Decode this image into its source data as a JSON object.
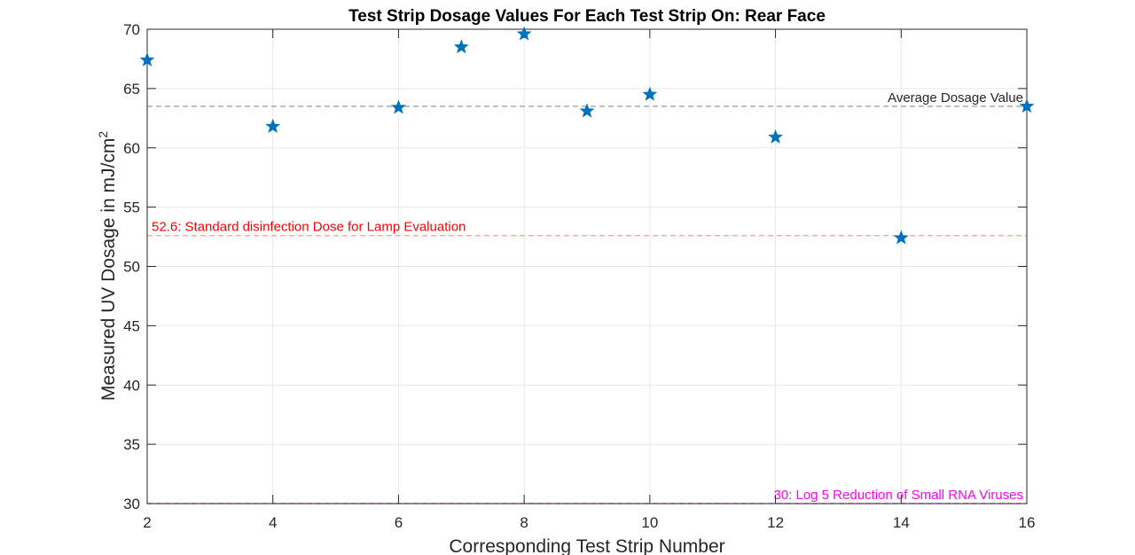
{
  "chart_data": {
    "type": "scatter",
    "title": "Test Strip Dosage Values For Each Test Strip On: Rear Face",
    "xlabel": "Corresponding Test Strip Number",
    "ylabel_main": "Measured UV Dosage in mJ/cm",
    "ylabel_sup": "2",
    "xlim": [
      2,
      16
    ],
    "ylim": [
      30,
      70
    ],
    "xticks": [
      2,
      4,
      6,
      8,
      10,
      12,
      14,
      16
    ],
    "yticks": [
      30,
      35,
      40,
      45,
      50,
      55,
      60,
      65,
      70
    ],
    "grid": true,
    "marker": "star",
    "marker_color": "#0072BD",
    "x": [
      2,
      4,
      6,
      7,
      8,
      9,
      10,
      12,
      14,
      16
    ],
    "y": [
      67.4,
      61.8,
      63.4,
      68.5,
      69.6,
      63.1,
      64.5,
      60.9,
      52.4,
      63.5
    ],
    "reference_lines": [
      {
        "y": 63.5,
        "label": "Average Dosage Value",
        "color": "#8c8c8c",
        "text_color": "#262626",
        "label_anchor": "right"
      },
      {
        "y": 52.6,
        "label": "52.6: Standard disinfection Dose for Lamp Evaluation",
        "color": "#ff9999",
        "text_color": "#ff0000",
        "label_anchor": "left"
      },
      {
        "y": 30,
        "label": "30: Log 5 Reduction of Small RNA Viruses",
        "color": "#ff00ff",
        "text_color": "#ff00ff",
        "label_anchor": "right"
      }
    ]
  }
}
